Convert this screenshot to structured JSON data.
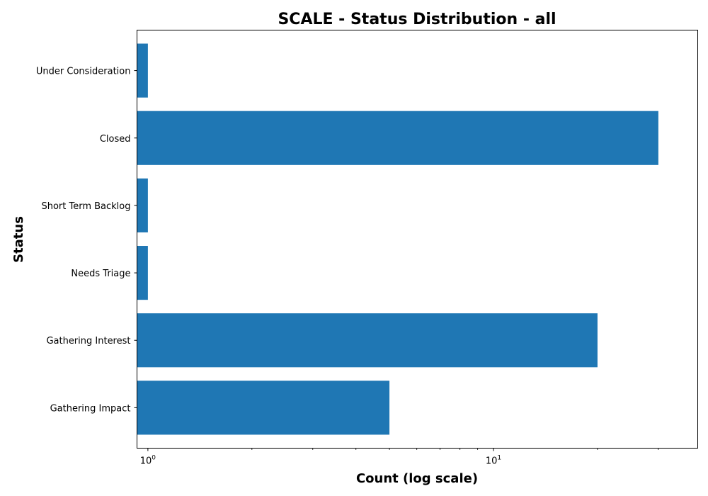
{
  "chart_data": {
    "type": "bar",
    "orientation": "horizontal",
    "title": "SCALE - Status Distribution - all",
    "xlabel": "Count (log scale)",
    "ylabel": "Status",
    "x_scale": "log",
    "xlim": [
      0.93,
      39
    ],
    "x_ticks": [
      {
        "value": 1,
        "base": "10",
        "exp": "0"
      },
      {
        "value": 10,
        "base": "10",
        "exp": "1"
      }
    ],
    "categories": [
      "Under Consideration",
      "Closed",
      "Short Term Backlog",
      "Needs Triage",
      "Gathering Interest",
      "Gathering Impact"
    ],
    "values": [
      1,
      30,
      1,
      1,
      20,
      5
    ],
    "bar_color": "#1f77b4",
    "grid": false,
    "legend": "none"
  }
}
